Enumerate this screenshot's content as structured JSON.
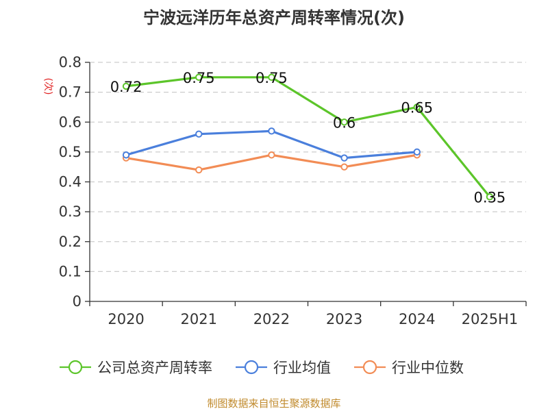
{
  "title": "宁波远洋历年总资产周转率情况(次)",
  "source": "制图数据来自恒生聚源数据库",
  "chart_data": {
    "type": "line",
    "title": "宁波远洋历年总资产周转率情况(次)",
    "ylabel": "(次)",
    "xlabel": "",
    "categories": [
      "2020",
      "2021",
      "2022",
      "2023",
      "2024",
      "2025H1"
    ],
    "ylim": [
      0,
      0.8
    ],
    "yticks": [
      0,
      0.1,
      0.2,
      0.3,
      0.4,
      0.5,
      0.6,
      0.7,
      0.8
    ],
    "ytick_labels": [
      "0",
      "0.1",
      "0.2",
      "0.3",
      "0.4",
      "0.5",
      "0.6",
      "0.7",
      "0.8"
    ],
    "grid": true,
    "legend_position": "bottom",
    "series": [
      {
        "name": "公司总资产周转率",
        "color": "#5cc52a",
        "values": [
          0.72,
          0.75,
          0.75,
          0.6,
          0.65,
          0.35
        ],
        "labels": [
          "0.72",
          "0.75",
          "0.75",
          "0.6",
          "0.65",
          "0.35"
        ],
        "show_labels": true
      },
      {
        "name": "行业均值",
        "color": "#4a7fdc",
        "values": [
          0.49,
          0.56,
          0.57,
          0.48,
          0.5,
          null
        ],
        "show_labels": false
      },
      {
        "name": "行业中位数",
        "color": "#f28c55",
        "values": [
          0.48,
          0.44,
          0.49,
          0.45,
          0.49,
          null
        ],
        "show_labels": false
      }
    ]
  }
}
